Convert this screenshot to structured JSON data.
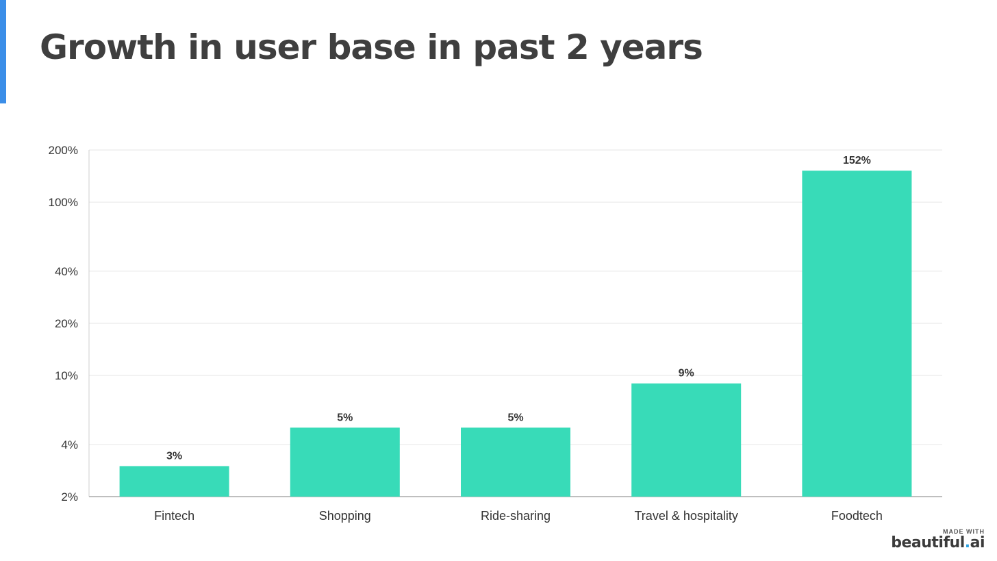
{
  "slide": {
    "title": "Growth in user base in past 2 years",
    "accent_color": "#3b8ee8"
  },
  "chart_data": {
    "type": "bar",
    "title": "Growth in user base in past 2 years",
    "xlabel": "",
    "ylabel": "",
    "scale": "log",
    "categories": [
      "Fintech",
      "Shopping",
      "Ride-sharing",
      "Travel & hospitality",
      "Foodtech"
    ],
    "values": [
      3,
      5,
      5,
      9,
      152
    ],
    "value_labels": [
      "3%",
      "5%",
      "5%",
      "9%",
      "152%"
    ],
    "ylim": [
      2,
      200
    ],
    "yticks": [
      2,
      4,
      10,
      20,
      40,
      100,
      200
    ],
    "ytick_labels": [
      "2%",
      "4%",
      "10%",
      "20%",
      "40%",
      "100%",
      "200%"
    ],
    "grid": true,
    "bar_color": "#38dbb8"
  },
  "branding": {
    "made_with": "MADE WITH",
    "logo_text": "beautiful",
    "logo_dot": ".",
    "logo_suffix": "ai"
  }
}
